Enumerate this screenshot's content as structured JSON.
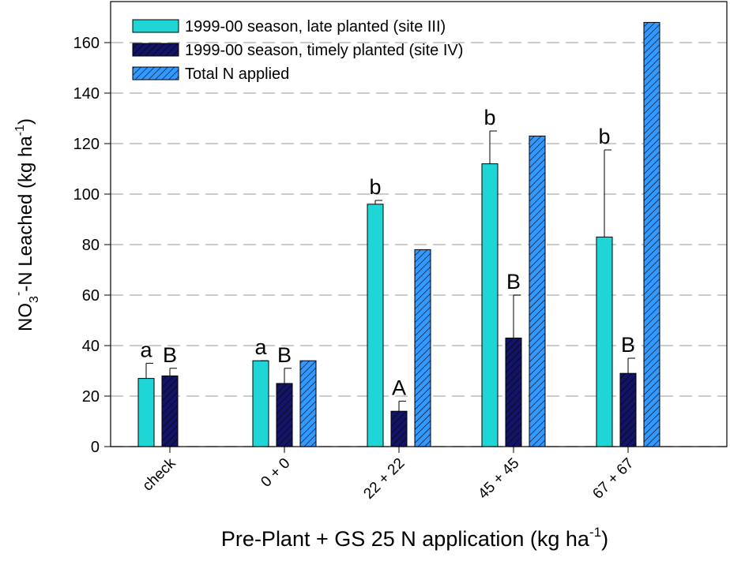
{
  "chart_data": {
    "type": "bar",
    "x_label": [
      "Pre-Plant + GS 25 N application (kg ha",
      "-1",
      ")"
    ],
    "y_label": [
      "NO",
      "3",
      "-",
      "-N Leached (kg ha",
      "-1",
      ")"
    ],
    "categories": [
      "check",
      "0 + 0",
      "22 + 22",
      "45 + 45",
      "67 + 67"
    ],
    "series": [
      {
        "name": "1999-00 season, late planted (site III)",
        "color": "#1fd6d6",
        "hatched": false,
        "values": [
          27,
          34,
          96,
          112,
          83
        ],
        "errors": [
          6,
          0,
          1.5,
          13,
          34.5
        ],
        "letters": [
          "a",
          "a",
          "b",
          "b",
          "b"
        ]
      },
      {
        "name": "1999-00 season, timely planted (site IV)",
        "color": "#141466",
        "hatched": true,
        "values": [
          28,
          25,
          14,
          43,
          29
        ],
        "errors": [
          3,
          6,
          4,
          17,
          6
        ],
        "letters": [
          "B",
          "B",
          "A",
          "B",
          "B"
        ]
      },
      {
        "name": "Total N applied",
        "color": "#3399ff",
        "hatched": true,
        "values": [
          null,
          34,
          78,
          123,
          168
        ]
      }
    ],
    "ylim": [
      0,
      175
    ],
    "yticks": [
      0,
      20,
      40,
      60,
      80,
      100,
      120,
      140,
      160
    ],
    "grid": true
  }
}
